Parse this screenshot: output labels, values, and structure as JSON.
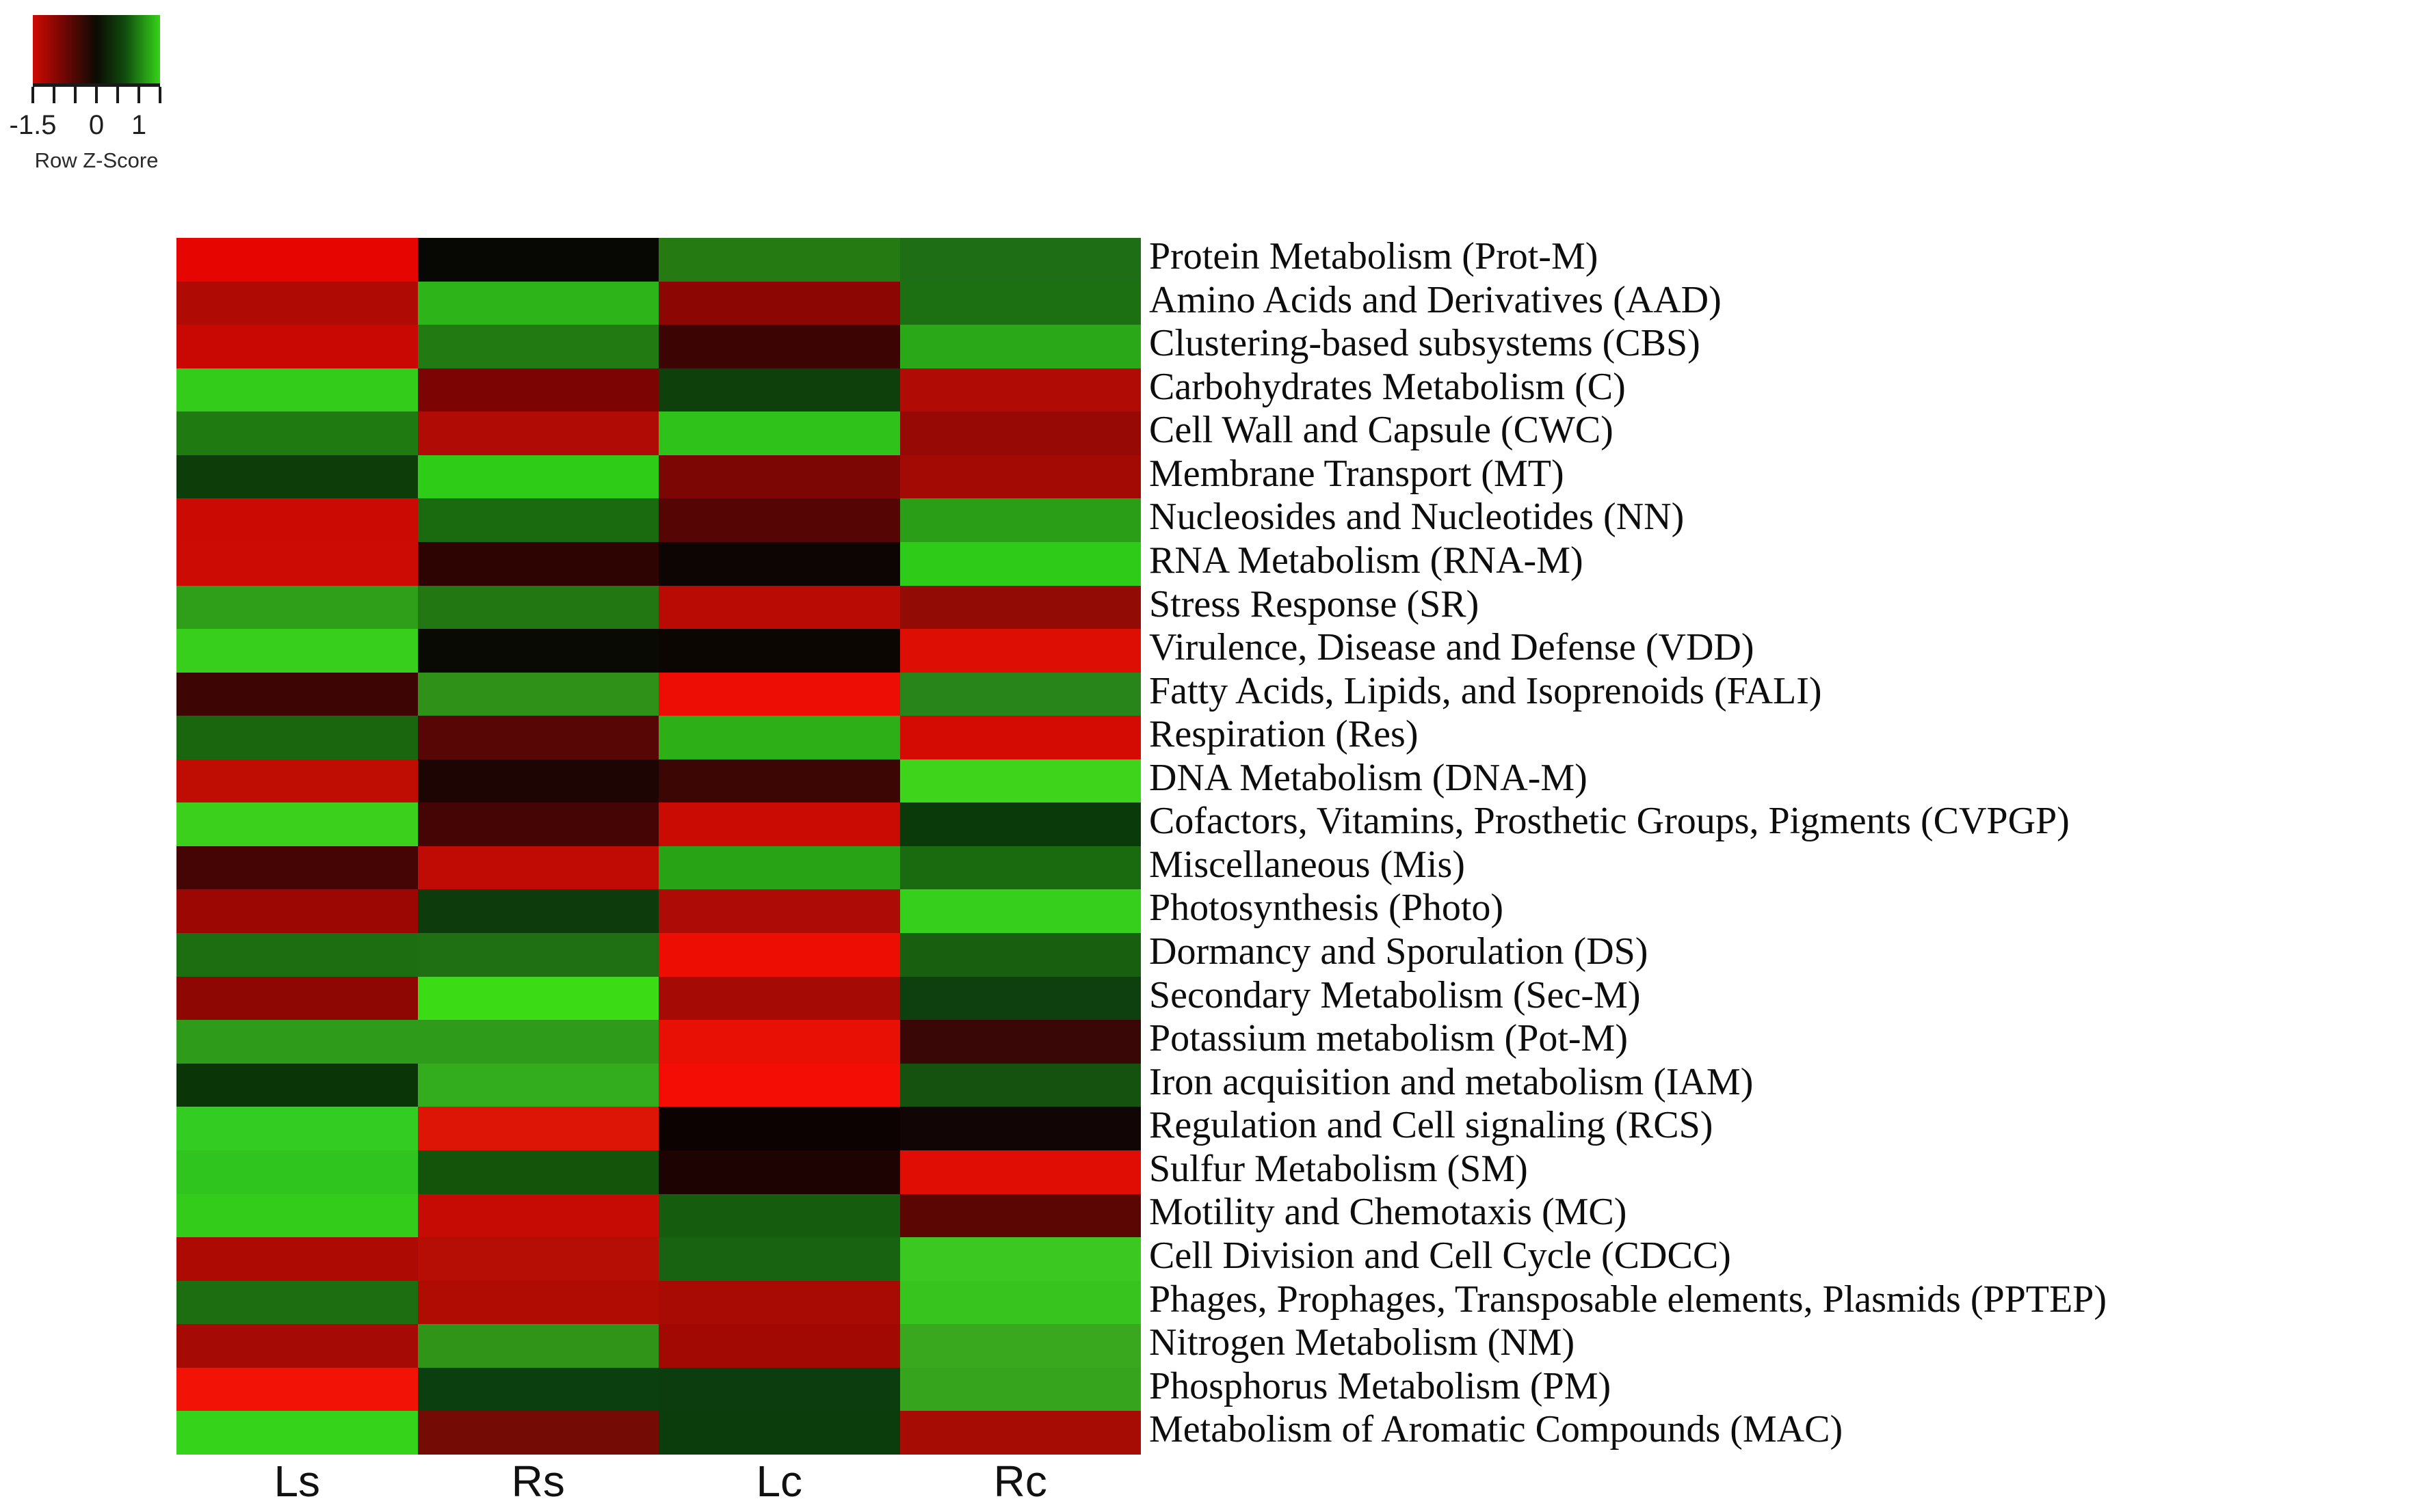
{
  "legend": {
    "title": "Row Z-Score",
    "tick_labels": [
      "-1.5",
      "0",
      "1"
    ],
    "tick_label_positions_pct": [
      0,
      50,
      83.3
    ],
    "tick_count": 7,
    "gradient_stops": [
      "#cf0b03",
      "#0b0b04",
      "#35d319"
    ]
  },
  "chart_data": {
    "type": "heatmap",
    "title": "",
    "colorscale": {
      "label": "Row Z-Score",
      "min": -1.5,
      "mid": 0,
      "max": 1.5,
      "low_color": "#cf0b03",
      "mid_color": "#0b0b04",
      "high_color": "#35d319"
    },
    "columns": [
      "Ls",
      "Rs",
      "Lc",
      "Rc"
    ],
    "rows": [
      {
        "label": "Protein Metabolism (Prot-M)",
        "colors": [
          "#e60500",
          "#070703",
          "#267a12",
          "#1d6e15"
        ],
        "z_est": [
          -1.5,
          0.0,
          0.8,
          0.7
        ]
      },
      {
        "label": "Amino Acids and Derivatives (AAD)",
        "colors": [
          "#b00a05",
          "#2db418",
          "#8c0703",
          "#1c7012"
        ],
        "z_est": [
          -1.15,
          1.15,
          -0.9,
          0.7
        ]
      },
      {
        "label": "Clustering-based subsystems (CBS)",
        "colors": [
          "#c90804",
          "#217a12",
          "#3c0504",
          "#2aa818"
        ],
        "z_est": [
          -1.3,
          0.8,
          -0.35,
          1.1
        ]
      },
      {
        "label": "Carbohydrates Metabolism (C)",
        "colors": [
          "#33cc1a",
          "#7c0503",
          "#0e400c",
          "#b00b04"
        ],
        "z_est": [
          1.35,
          -0.8,
          0.4,
          -1.15
        ]
      },
      {
        "label": "Cell Wall and Capsule (CWC)",
        "colors": [
          "#1e7a11",
          "#b00c05",
          "#2ec21a",
          "#970904"
        ],
        "z_est": [
          0.8,
          -1.15,
          1.3,
          -1.0
        ]
      },
      {
        "label": "Membrane Transport (MT)",
        "colors": [
          "#0d3d09",
          "#2ecc17",
          "#7c0603",
          "#a30a04"
        ],
        "z_est": [
          0.4,
          1.35,
          -0.8,
          -1.05
        ]
      },
      {
        "label": "Nucleosides and Nucleotides (NN)",
        "colors": [
          "#cc0a04",
          "#1a6b10",
          "#540504",
          "#2a9e17"
        ],
        "z_est": [
          -1.35,
          0.7,
          -0.55,
          1.05
        ]
      },
      {
        "label": "RNA Metabolism (RNA-M)",
        "colors": [
          "#cc0b04",
          "#2e0403",
          "#0d0503",
          "#2ecc18"
        ],
        "z_est": [
          -1.35,
          -0.3,
          -0.05,
          1.35
        ]
      },
      {
        "label": "Stress Response (SR)",
        "colors": [
          "#2f9e18",
          "#237712",
          "#b90b04",
          "#930b05"
        ],
        "z_est": [
          1.05,
          0.75,
          -1.2,
          -0.95
        ]
      },
      {
        "label": "Virulence, Disease and Defense (VDD)",
        "colors": [
          "#37cf1b",
          "#0a0a04",
          "#0c0603",
          "#dd0f05"
        ],
        "z_est": [
          1.35,
          0.0,
          -0.05,
          -1.45
        ]
      },
      {
        "label": "Fatty Acids, Lipids, and Isoprenoids (FALI)",
        "colors": [
          "#3d0504",
          "#2f9117",
          "#ed0d04",
          "#28851a"
        ],
        "z_est": [
          -0.35,
          0.95,
          -1.5,
          0.85
        ]
      },
      {
        "label": "Respiration (Res)",
        "colors": [
          "#19660e",
          "#570505",
          "#2daf18",
          "#d40b03"
        ],
        "z_est": [
          0.65,
          -0.55,
          1.15,
          -1.4
        ]
      },
      {
        "label": "DNA Metabolism (DNA-M)",
        "colors": [
          "#c00d04",
          "#1d0504",
          "#3c0605",
          "#3ed41c"
        ],
        "z_est": [
          -1.25,
          -0.15,
          -0.35,
          1.4
        ]
      },
      {
        "label": "Cofactors, Vitamins, Prosthetic Groups, Pigments (CVPGP)",
        "colors": [
          "#3bd01b",
          "#460505",
          "#c90b03",
          "#0b3a0a"
        ],
        "z_est": [
          1.35,
          -0.45,
          -1.3,
          0.35
        ]
      },
      {
        "label": "Miscellaneous (Mis)",
        "colors": [
          "#440504",
          "#c00b04",
          "#28a316",
          "#1a6b10"
        ],
        "z_est": [
          -0.4,
          -1.25,
          1.05,
          0.7
        ]
      },
      {
        "label": "Photosynthesis (Photo)",
        "colors": [
          "#9c0703",
          "#0d3b0c",
          "#ad0b05",
          "#36cf1b"
        ],
        "z_est": [
          -1.0,
          0.35,
          -1.1,
          1.35
        ]
      },
      {
        "label": "Dormancy and Sporulation (DS)",
        "colors": [
          "#1d6e10",
          "#1f7013",
          "#ee0d03",
          "#186010"
        ],
        "z_est": [
          0.7,
          0.7,
          -1.5,
          0.6
        ]
      },
      {
        "label": "Secondary Metabolism (Sec-M)",
        "colors": [
          "#8e0703",
          "#3bdb16",
          "#a50b04",
          "#0e3f0e"
        ],
        "z_est": [
          -0.9,
          1.45,
          -1.05,
          0.4
        ]
      },
      {
        "label": "Potassium metabolism (Pot-M)",
        "colors": [
          "#2f9b1a",
          "#2f9b1a",
          "#e81004",
          "#390706"
        ],
        "z_est": [
          1.0,
          1.0,
          -1.5,
          -0.35
        ]
      },
      {
        "label": "Iron acquisition and metabolism (IAM)",
        "colors": [
          "#0a3607",
          "#33ad1d",
          "#f30d04",
          "#15520f"
        ],
        "z_est": [
          0.35,
          1.1,
          -1.5,
          0.5
        ]
      },
      {
        "label": "Regulation and Cell signaling (RCS)",
        "colors": [
          "#33cc22",
          "#dd1507",
          "#0d0202",
          "#120505"
        ],
        "z_est": [
          1.35,
          -1.45,
          0.0,
          -0.05
        ]
      },
      {
        "label": "Sulfur Metabolism (SM)",
        "colors": [
          "#2fc41e",
          "#14540a",
          "#1d0302",
          "#e00d05"
        ],
        "z_est": [
          1.3,
          0.55,
          -0.15,
          -1.45
        ]
      },
      {
        "label": "Motility and Chemotaxis (MC)",
        "colors": [
          "#33cc1a",
          "#c50b04",
          "#155c0e",
          "#5c0604"
        ],
        "z_est": [
          1.35,
          -1.3,
          0.6,
          -0.6
        ]
      },
      {
        "label": "Cell Division and Cell Cycle (CDCC)",
        "colors": [
          "#ad0a04",
          "#b60d05",
          "#176312",
          "#3bc921"
        ],
        "z_est": [
          -1.1,
          -1.2,
          0.65,
          1.3
        ]
      },
      {
        "label": "Phages, Prophages, Transposable elements, Plasmids (PPTEP)",
        "colors": [
          "#1c6e11",
          "#b00c04",
          "#a80b04",
          "#38c41e"
        ],
        "z_est": [
          0.7,
          -1.15,
          -1.1,
          1.3
        ]
      },
      {
        "label": "Nitrogen Metabolism (NM)",
        "colors": [
          "#a50a04",
          "#2f9417",
          "#a30903",
          "#3aa81e"
        ],
        "z_est": [
          -1.05,
          0.95,
          -1.05,
          1.1
        ]
      },
      {
        "label": "Phosphorus Metabolism (PM)",
        "colors": [
          "#f31206",
          "#0c3f10",
          "#0c3d0e",
          "#36a41c"
        ],
        "z_est": [
          -1.5,
          0.4,
          0.4,
          1.05
        ]
      },
      {
        "label": "Metabolism of Aromatic Compounds (MAC)",
        "colors": [
          "#35d319",
          "#750b05",
          "#0b3c0c",
          "#a60c04"
        ],
        "z_est": [
          1.4,
          -0.75,
          0.4,
          -1.05
        ]
      }
    ]
  }
}
